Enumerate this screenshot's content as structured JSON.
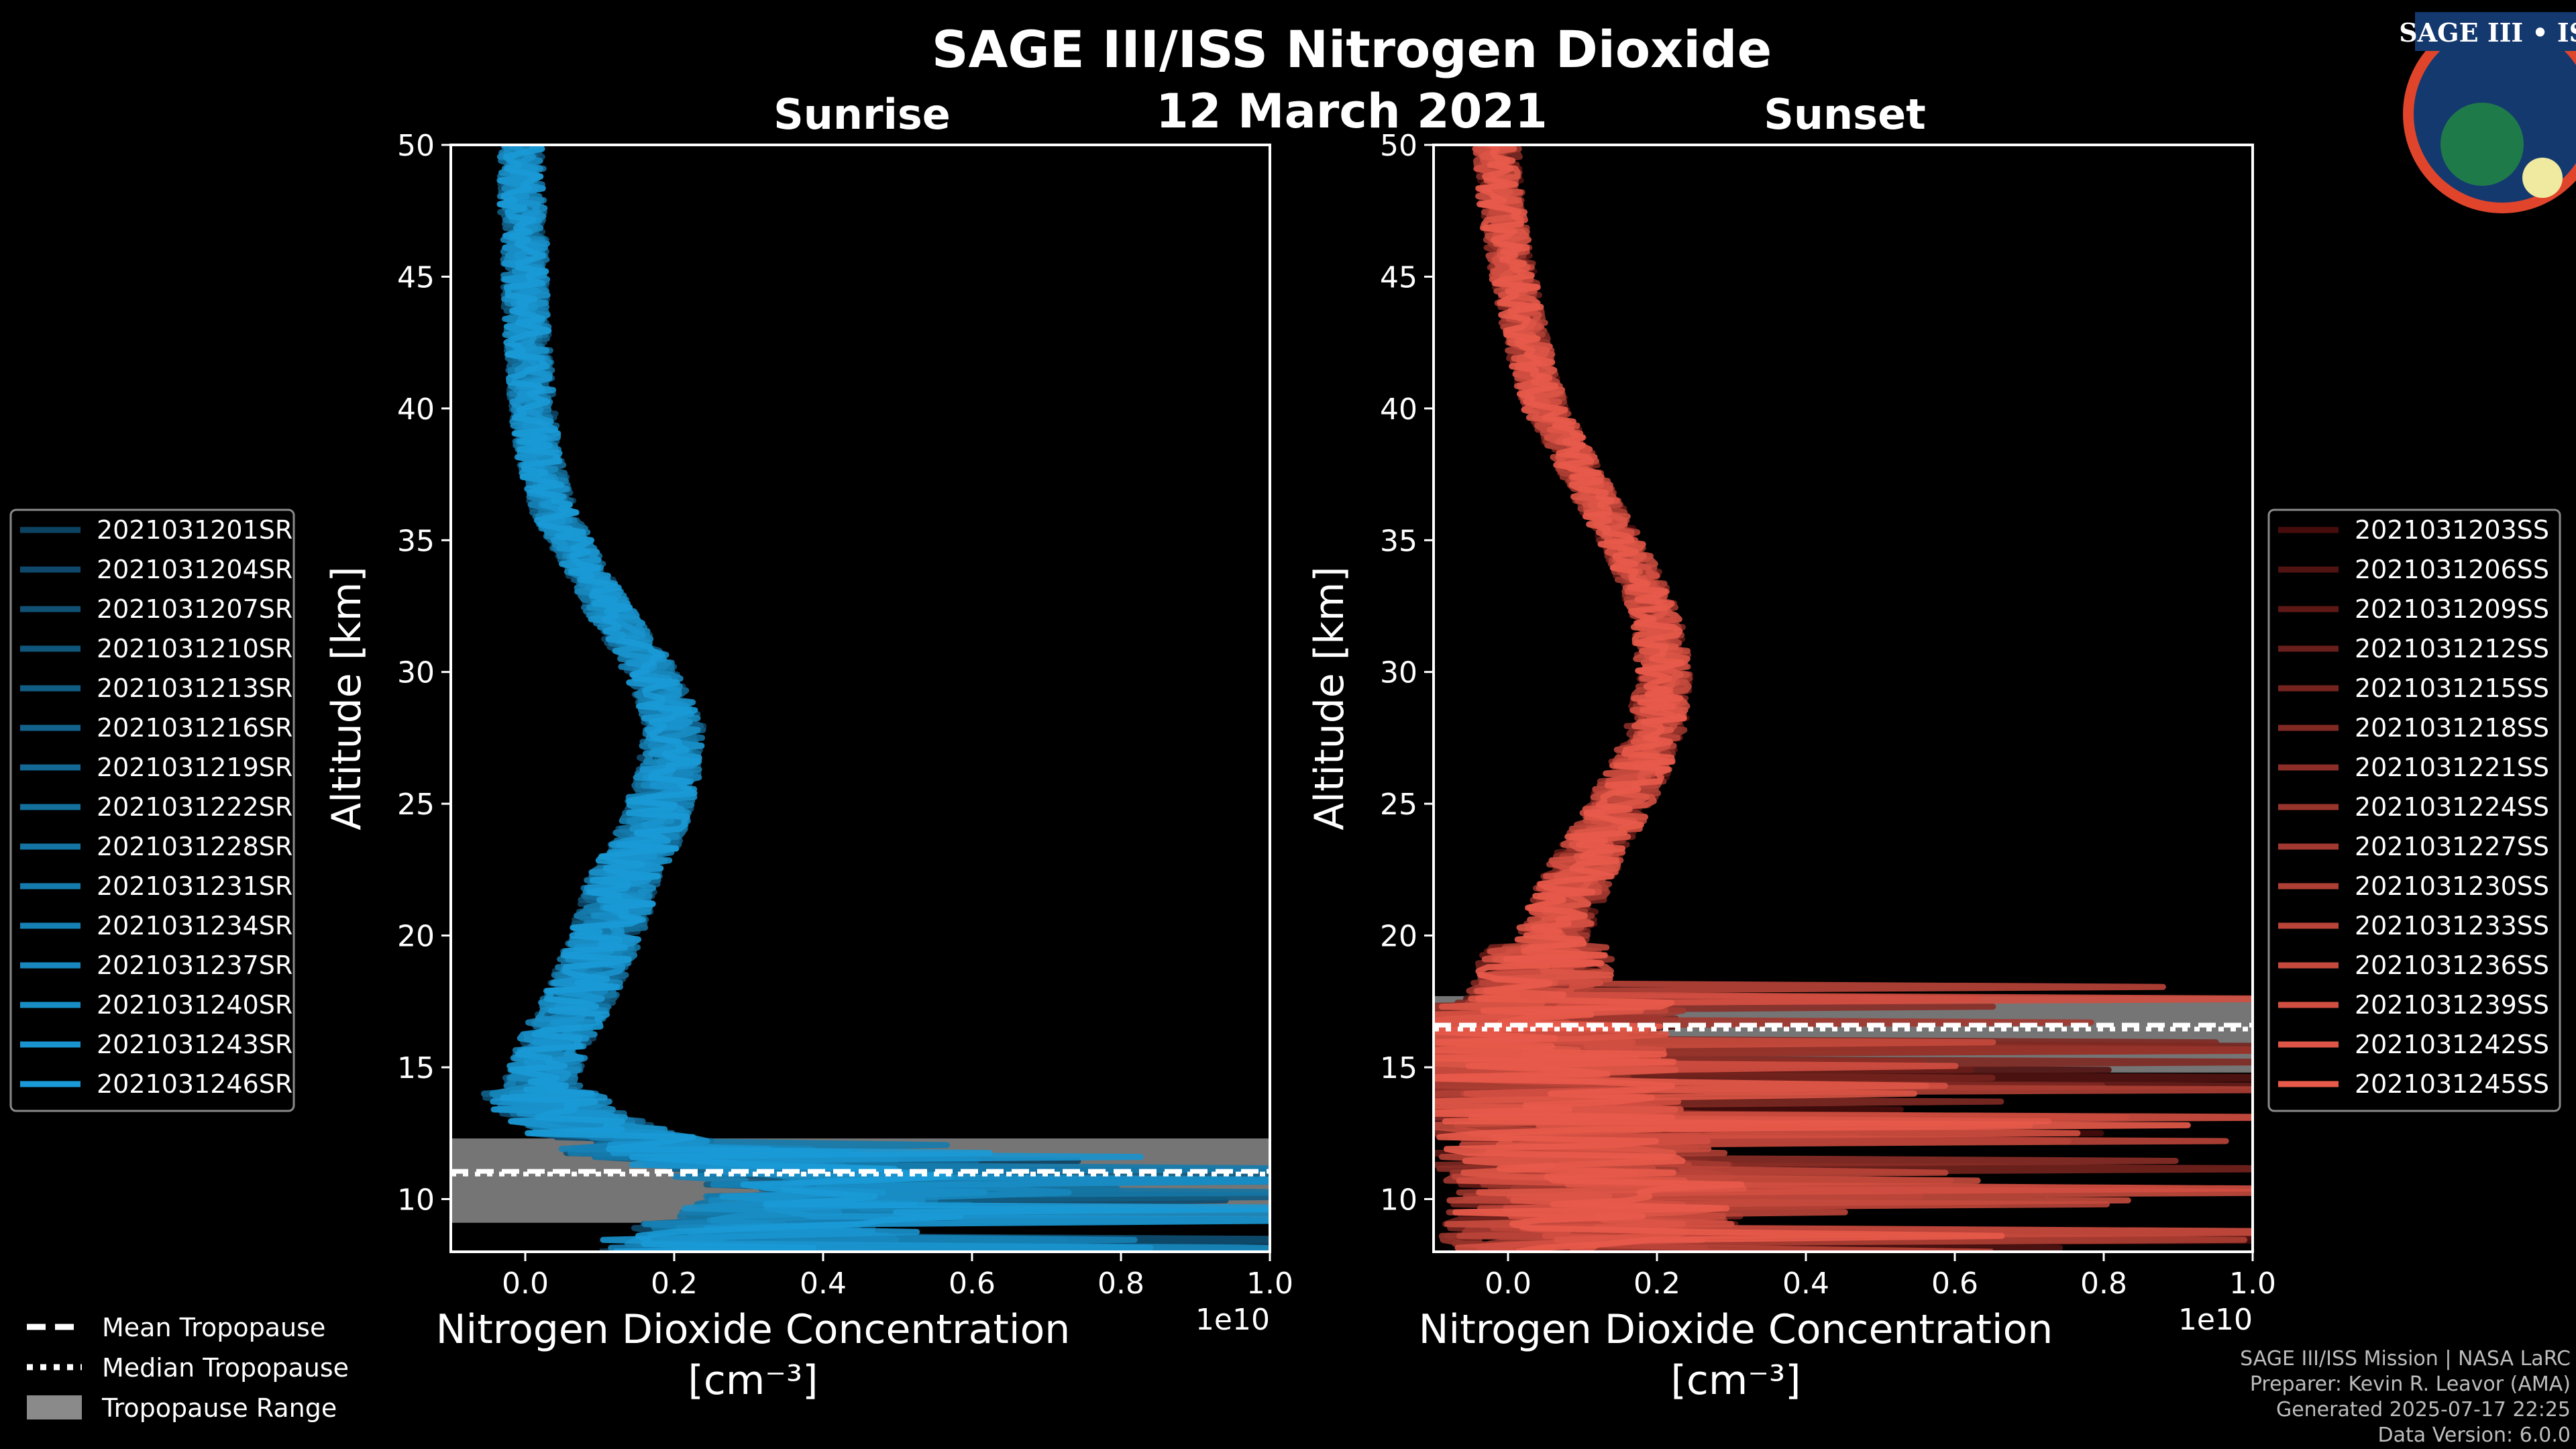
{
  "chart_data": {
    "title": "SAGE III/ISS Nitrogen Dioxide",
    "date": "12 March 2021",
    "xlabel_line1": "Nitrogen Dioxide Concentration",
    "xlabel_line2": "[cm⁻³]",
    "x_scale_label": "1e10",
    "ylabel": "Altitude [km]",
    "xlim": [
      -0.1,
      1.0
    ],
    "ylim": [
      8,
      50
    ],
    "xticks": [
      0.0,
      0.2,
      0.4,
      0.6,
      0.8,
      1.0
    ],
    "xtick_labels": [
      "0.0",
      "0.2",
      "0.4",
      "0.6",
      "0.8",
      "1.0"
    ],
    "yticks": [
      10,
      15,
      20,
      25,
      30,
      35,
      40,
      45,
      50
    ],
    "ytick_labels": [
      "10",
      "15",
      "20",
      "25",
      "30",
      "35",
      "40",
      "45",
      "50"
    ],
    "panels": [
      {
        "type": "line",
        "name": "Sunrise",
        "color_light": "#1a9ad6",
        "color_dark": "#0c3d5a",
        "tropopause": {
          "mean": 11.05,
          "median": 10.95,
          "range": [
            9.1,
            12.3
          ]
        },
        "series_names": [
          "2021031201SR",
          "2021031204SR",
          "2021031207SR",
          "2021031210SR",
          "2021031213SR",
          "2021031216SR",
          "2021031219SR",
          "2021031222SR",
          "2021031228SR",
          "2021031231SR",
          "2021031234SR",
          "2021031237SR",
          "2021031240SR",
          "2021031243SR",
          "2021031246SR"
        ],
        "mean_profile": [
          [
            8.5,
            0.3
          ],
          [
            9.5,
            0.4
          ],
          [
            10.5,
            0.45
          ],
          [
            11.5,
            0.3
          ],
          [
            12.5,
            0.1
          ],
          [
            13.5,
            0.04
          ],
          [
            14.5,
            0.02
          ],
          [
            16,
            0.04
          ],
          [
            18,
            0.08
          ],
          [
            20,
            0.11
          ],
          [
            22,
            0.13
          ],
          [
            24,
            0.17
          ],
          [
            26,
            0.19
          ],
          [
            28,
            0.2
          ],
          [
            30,
            0.17
          ],
          [
            32,
            0.12
          ],
          [
            34,
            0.08
          ],
          [
            36,
            0.04
          ],
          [
            38,
            0.02
          ],
          [
            40,
            0.01
          ],
          [
            42,
            0.005
          ],
          [
            44,
            0.0
          ],
          [
            46,
            0.0
          ],
          [
            48,
            -0.005
          ],
          [
            50,
            -0.005
          ]
        ]
      },
      {
        "type": "line",
        "name": "Sunset",
        "color_light": "#e85a4a",
        "color_dark": "#3a0808",
        "tropopause": {
          "mean": 16.6,
          "median": 16.45,
          "range": [
            14.8,
            17.7
          ]
        },
        "series_names": [
          "2021031203SS",
          "2021031206SS",
          "2021031209SS",
          "2021031212SS",
          "2021031215SS",
          "2021031218SS",
          "2021031221SS",
          "2021031224SS",
          "2021031227SS",
          "2021031230SS",
          "2021031233SS",
          "2021031236SS",
          "2021031239SS",
          "2021031242SS",
          "2021031245SS"
        ],
        "mean_profile": [
          [
            8.5,
            0.1
          ],
          [
            9.5,
            0.12
          ],
          [
            10.5,
            0.12
          ],
          [
            11.5,
            0.1
          ],
          [
            12.5,
            0.08
          ],
          [
            13.5,
            0.05
          ],
          [
            14.5,
            0.03
          ],
          [
            16,
            0.03
          ],
          [
            18,
            0.04
          ],
          [
            20,
            0.06
          ],
          [
            22,
            0.09
          ],
          [
            24,
            0.13
          ],
          [
            26,
            0.17
          ],
          [
            28,
            0.2
          ],
          [
            30,
            0.21
          ],
          [
            32,
            0.2
          ],
          [
            34,
            0.17
          ],
          [
            36,
            0.13
          ],
          [
            38,
            0.09
          ],
          [
            40,
            0.05
          ],
          [
            42,
            0.03
          ],
          [
            44,
            0.015
          ],
          [
            46,
            0.0
          ],
          [
            48,
            -0.01
          ],
          [
            50,
            -0.015
          ]
        ]
      }
    ],
    "tropopause_legend": [
      "Mean Tropopause",
      "Median Tropopause",
      "Tropopause Range"
    ]
  },
  "logo": {
    "text": "SAGE III • ISS",
    "color": "#e0452b"
  },
  "footer": {
    "line1": "SAGE III/ISS Mission | NASA LaRC",
    "line2": "Preparer: Kevin R. Leavor (AMA)",
    "line3": "Generated 2025-07-17 22:25",
    "line4": "Data Version: 6.0.0"
  }
}
